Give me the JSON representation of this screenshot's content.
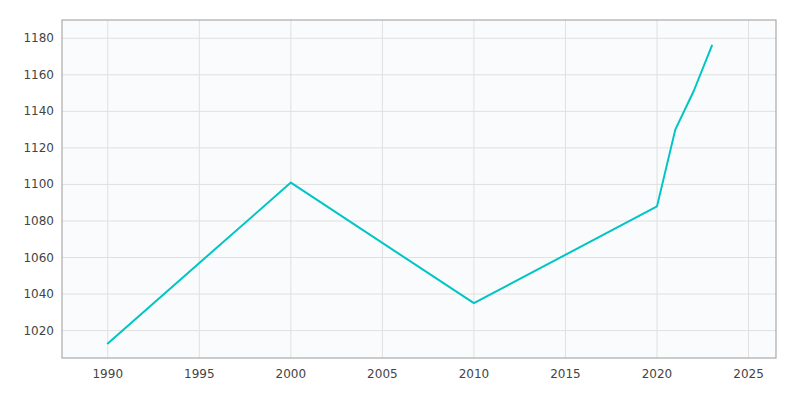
{
  "chart_data": {
    "type": "line",
    "x": [
      1990,
      2000,
      2010,
      2020,
      2021,
      2022,
      2023
    ],
    "values": [
      1013,
      1101,
      1035,
      1088,
      1130,
      1151,
      1176
    ],
    "color": "#00C5C5",
    "xlim": [
      1987.5,
      2026.5
    ],
    "ylim": [
      1005,
      1190
    ],
    "xticks": [
      1990,
      1995,
      2000,
      2005,
      2010,
      2015,
      2020,
      2025
    ],
    "yticks": [
      1020,
      1040,
      1060,
      1080,
      1100,
      1120,
      1140,
      1160,
      1180
    ],
    "grid": true
  }
}
